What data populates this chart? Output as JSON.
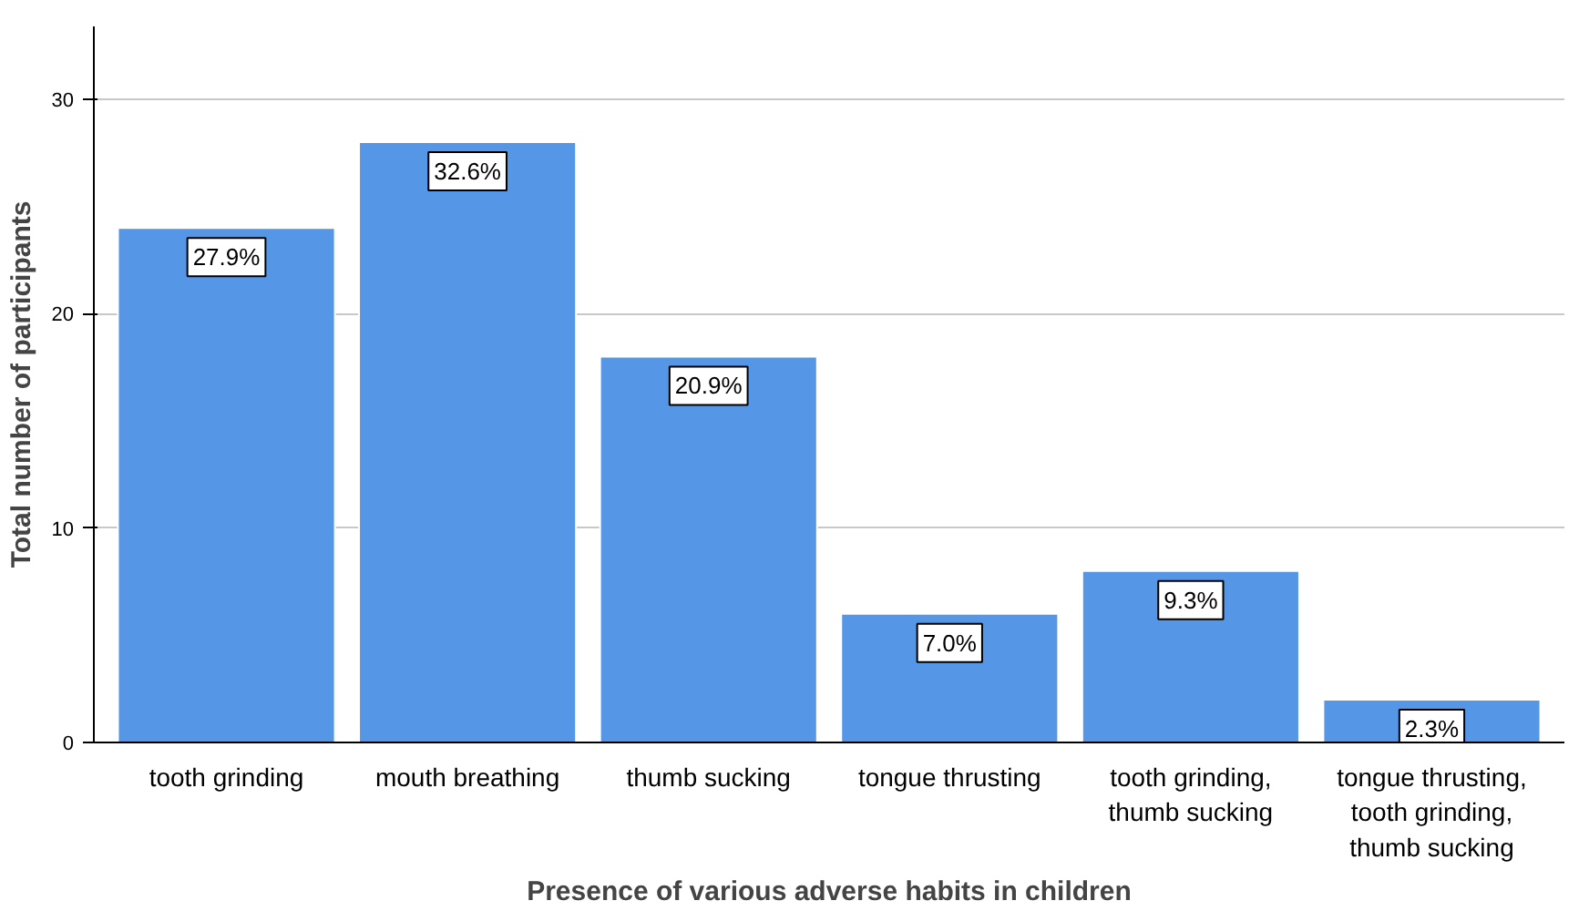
{
  "chart_data": {
    "type": "bar",
    "xlabel": "Presence of various adverse habits in children",
    "ylabel": "Total number of participants",
    "categories": [
      "tooth grinding",
      "mouth breathing",
      "thumb sucking",
      "tongue thrusting",
      "tooth grinding, thumb sucking",
      "tongue thrusting, tooth grinding, thumb sucking"
    ],
    "values": [
      24,
      28,
      18,
      6,
      8,
      2
    ],
    "annotations": [
      {
        "text": "27.9%",
        "x": "tooth grinding",
        "y": 24
      },
      {
        "text": "32.6%",
        "x": "mouth breathing",
        "y": 28
      },
      {
        "text": "20.9%",
        "x": "thumb sucking",
        "y": 18
      },
      {
        "text": "7.0%",
        "x": "tongue thrusting",
        "y": 6
      },
      {
        "text": "9.3%",
        "x": "tooth grinding, thumb sucking",
        "y": 8
      },
      {
        "text": "2.3%",
        "x": "tongue thrusting, tooth grinding, thumb sucking",
        "y": 2
      }
    ],
    "color": "#5596e6",
    "ylim": [
      0,
      33.4
    ],
    "yticks": [
      0,
      10,
      20,
      30
    ],
    "grid": "y"
  }
}
